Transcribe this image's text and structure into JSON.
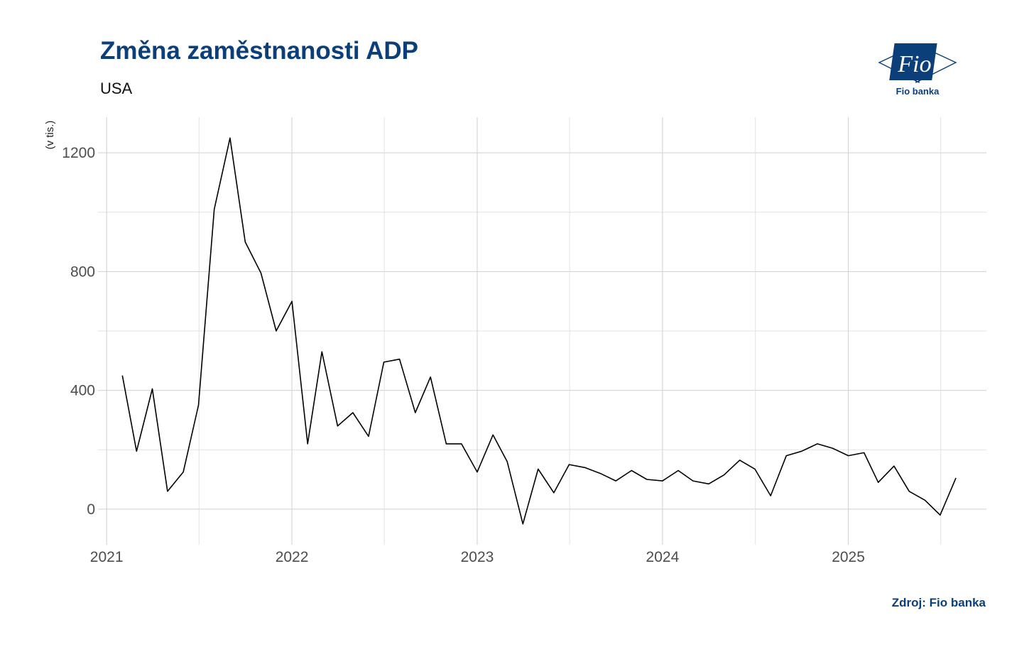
{
  "header": {
    "title": "Změna zaměstnanosti ADP",
    "subtitle": "USA"
  },
  "logo": {
    "mark": "Fio",
    "caption": "Fio banka",
    "color": "#0b3f7a"
  },
  "footer": {
    "source": "Zdroj: Fio banka"
  },
  "chart_data": {
    "type": "line",
    "title": "Změna zaměstnanosti ADP",
    "subtitle": "USA",
    "ylabel": "(v tis.)",
    "xlabel": "",
    "xlim": [
      "2020-12-15",
      "2025-09-30"
    ],
    "ylim": [
      -120,
      1320
    ],
    "x_ticks": [
      "2021-01-01",
      "2022-01-01",
      "2023-01-01",
      "2024-01-01",
      "2025-01-01"
    ],
    "x_tick_labels": [
      "2021",
      "2022",
      "2023",
      "2024",
      "2025"
    ],
    "y_ticks": [
      0,
      400,
      800,
      1200
    ],
    "y_tick_labels": [
      "0",
      "400",
      "800",
      "1200"
    ],
    "grid": true,
    "line_color": "#000000",
    "series": [
      {
        "x": [
          "2021-02-01",
          "2021-03-01",
          "2021-04-01",
          "2021-05-01",
          "2021-06-01",
          "2021-07-01",
          "2021-08-01",
          "2021-09-01",
          "2021-10-01",
          "2021-11-01",
          "2021-12-01",
          "2022-01-01",
          "2022-02-01",
          "2022-03-01",
          "2022-04-01",
          "2022-05-01",
          "2022-06-01",
          "2022-07-01",
          "2022-08-01",
          "2022-09-01",
          "2022-10-01",
          "2022-11-01",
          "2022-12-01",
          "2023-01-01",
          "2023-02-01",
          "2023-03-01",
          "2023-04-01",
          "2023-05-01",
          "2023-06-01",
          "2023-07-01",
          "2023-08-01",
          "2023-09-01",
          "2023-10-01",
          "2023-11-01",
          "2023-12-01",
          "2024-01-01",
          "2024-02-01",
          "2024-03-01",
          "2024-04-01",
          "2024-05-01",
          "2024-06-01",
          "2024-07-01",
          "2024-08-01",
          "2024-09-01",
          "2024-10-01",
          "2024-11-01",
          "2024-12-01",
          "2025-01-01",
          "2025-02-01",
          "2025-03-01",
          "2025-04-01",
          "2025-05-01",
          "2025-06-01",
          "2025-07-01",
          "2025-08-01"
        ],
        "values": [
          450,
          195,
          405,
          60,
          125,
          350,
          1010,
          1250,
          900,
          795,
          600,
          700,
          220,
          530,
          280,
          325,
          245,
          495,
          505,
          325,
          445,
          220,
          220,
          125,
          250,
          160,
          -50,
          135,
          55,
          150,
          140,
          120,
          95,
          130,
          100,
          95,
          130,
          95,
          85,
          115,
          165,
          135,
          45,
          180,
          195,
          220,
          205,
          180,
          190,
          90,
          145,
          60,
          30,
          -20,
          105
        ]
      }
    ]
  }
}
